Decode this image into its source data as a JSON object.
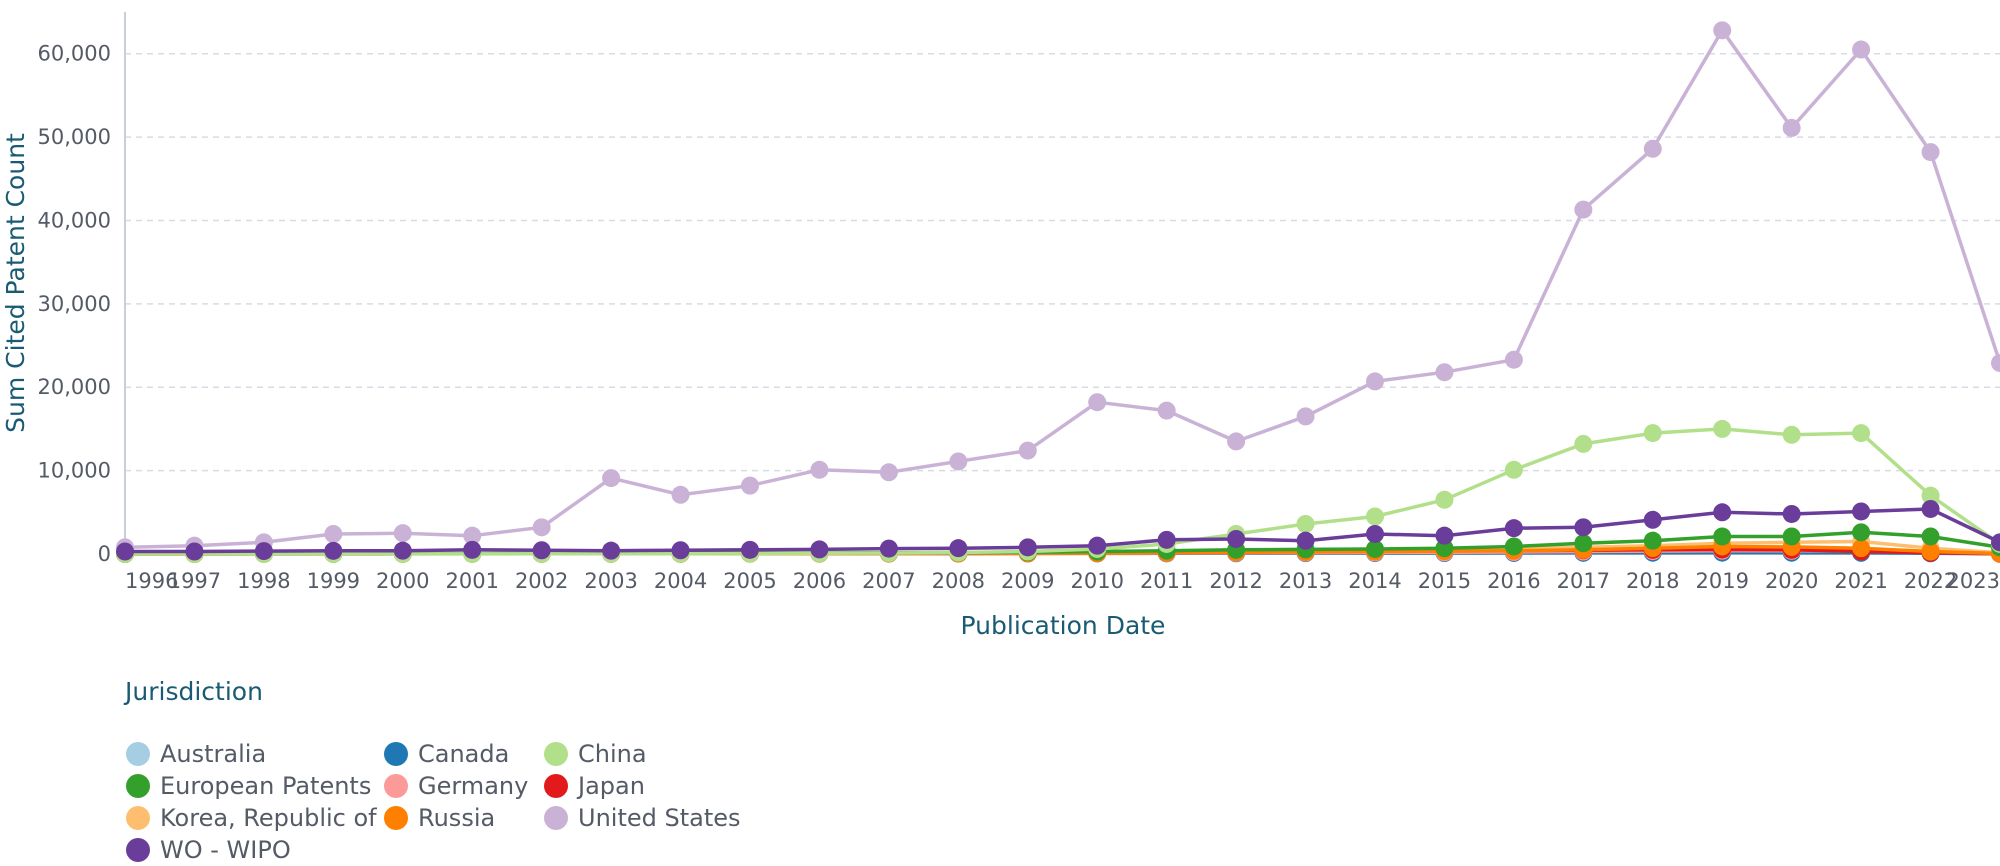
{
  "chart_data": {
    "type": "line",
    "xlabel": "Publication Date",
    "ylabel": "Sum Cited Patent Count",
    "ylim": [
      0,
      65000
    ],
    "yticks": [
      0,
      10000,
      20000,
      30000,
      40000,
      50000,
      60000
    ],
    "ytick_labels": [
      "0",
      "10,000",
      "20,000",
      "30,000",
      "40,000",
      "50,000",
      "60,000"
    ],
    "x": [
      1996,
      1997,
      1998,
      1999,
      2000,
      2001,
      2002,
      2003,
      2004,
      2005,
      2006,
      2007,
      2008,
      2009,
      2010,
      2011,
      2012,
      2013,
      2014,
      2015,
      2016,
      2017,
      2018,
      2019,
      2020,
      2021,
      2022,
      2023
    ],
    "xtick_labels": [
      "1996",
      "1997",
      "1998",
      "1999",
      "2000",
      "2001",
      "2002",
      "2003",
      "2004",
      "2005",
      "2006",
      "2007",
      "2008",
      "2009",
      "2010",
      "2011",
      "2012",
      "2013",
      "2014",
      "2015",
      "2016",
      "2017",
      "2018",
      "2019",
      "2020",
      "2021",
      "2022",
      "2023"
    ],
    "grid": true,
    "legend": {
      "title": "Jurisdiction",
      "placement": "bottom-left"
    },
    "series": [
      {
        "name": "Australia",
        "color": "#a6cee3",
        "values": [
          0,
          0,
          10,
          10,
          20,
          20,
          20,
          30,
          30,
          40,
          50,
          50,
          60,
          70,
          80,
          100,
          120,
          140,
          160,
          180,
          200,
          240,
          280,
          320,
          300,
          280,
          150,
          40
        ]
      },
      {
        "name": "Canada",
        "color": "#1f78b4",
        "values": [
          0,
          0,
          10,
          10,
          20,
          20,
          20,
          30,
          30,
          40,
          40,
          50,
          50,
          60,
          70,
          80,
          90,
          100,
          110,
          120,
          130,
          150,
          160,
          170,
          160,
          150,
          90,
          30
        ]
      },
      {
        "name": "China",
        "color": "#b2df8a",
        "values": [
          0,
          0,
          0,
          0,
          10,
          10,
          20,
          30,
          40,
          60,
          80,
          120,
          180,
          300,
          600,
          1200,
          2400,
          3600,
          4500,
          6500,
          10100,
          13200,
          14500,
          15000,
          14300,
          14500,
          7000,
          1200
        ]
      },
      {
        "name": "European Patents",
        "color": "#33a02c",
        "values": [
          20,
          20,
          30,
          40,
          50,
          50,
          60,
          70,
          80,
          100,
          120,
          150,
          180,
          220,
          300,
          400,
          500,
          550,
          600,
          700,
          900,
          1300,
          1600,
          2100,
          2100,
          2600,
          2100,
          800
        ]
      },
      {
        "name": "Germany",
        "color": "#fb9a99",
        "values": [
          10,
          10,
          10,
          20,
          20,
          20,
          30,
          30,
          30,
          40,
          50,
          60,
          70,
          80,
          100,
          120,
          140,
          160,
          180,
          200,
          240,
          300,
          350,
          400,
          380,
          360,
          200,
          50
        ]
      },
      {
        "name": "Japan",
        "color": "#e31a1c",
        "values": [
          10,
          20,
          20,
          30,
          40,
          40,
          50,
          60,
          70,
          80,
          100,
          120,
          140,
          160,
          200,
          240,
          280,
          300,
          340,
          380,
          420,
          460,
          500,
          540,
          500,
          300,
          150,
          40
        ]
      },
      {
        "name": "Korea, Republic of",
        "color": "#fdbf6f",
        "values": [
          0,
          0,
          10,
          10,
          10,
          20,
          20,
          30,
          40,
          50,
          60,
          80,
          100,
          120,
          150,
          200,
          250,
          300,
          400,
          500,
          600,
          800,
          1000,
          1300,
          1400,
          1500,
          700,
          150
        ]
      },
      {
        "name": "Russia",
        "color": "#ff7f00",
        "values": [
          0,
          0,
          10,
          10,
          20,
          20,
          20,
          30,
          30,
          40,
          50,
          60,
          70,
          80,
          100,
          150,
          200,
          250,
          300,
          350,
          400,
          500,
          700,
          900,
          850,
          700,
          300,
          60
        ]
      },
      {
        "name": "United States",
        "color": "#cab2d6",
        "values": [
          800,
          1000,
          1400,
          2400,
          2500,
          2200,
          3200,
          9100,
          7100,
          8200,
          10100,
          9800,
          11100,
          12400,
          18200,
          17200,
          13500,
          16500,
          20700,
          21800,
          23300,
          41300,
          48600,
          62800,
          51100,
          60500,
          48200,
          22900
        ]
      },
      {
        "name": "WO - WIPO",
        "color": "#6a3d9a",
        "values": [
          300,
          300,
          350,
          380,
          400,
          500,
          450,
          400,
          450,
          500,
          550,
          650,
          700,
          800,
          1000,
          1700,
          1800,
          1600,
          2400,
          2200,
          3100,
          3200,
          4100,
          5000,
          4800,
          5100,
          5400,
          1400
        ]
      }
    ]
  }
}
